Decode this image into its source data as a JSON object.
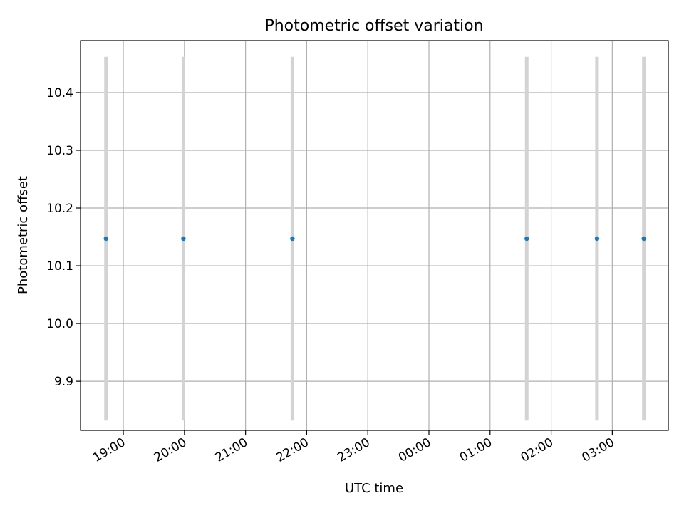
{
  "chart_data": {
    "type": "scatter",
    "title": "Photometric offset variation",
    "xlabel": "UTC time",
    "ylabel": "Photometric offset",
    "grid": true,
    "x_tick_labels": [
      "19:00",
      "20:00",
      "21:00",
      "22:00",
      "23:00",
      "00:00",
      "01:00",
      "02:00",
      "03:00"
    ],
    "y_tick_labels": [
      "9.9",
      "10.0",
      "10.1",
      "10.2",
      "10.3",
      "10.4"
    ],
    "ylim": [
      9.815,
      10.49
    ],
    "xlim": [
      "18:18",
      "03:55"
    ],
    "series": [
      {
        "x": [
          "18:43",
          "19:59",
          "21:46",
          "01:36",
          "02:45",
          "03:31"
        ],
        "y": [
          10.147,
          10.147,
          10.147,
          10.147,
          10.147,
          10.147
        ],
        "yerr": [
          0.315,
          0.315,
          0.315,
          0.315,
          0.315,
          0.315
        ]
      }
    ],
    "colors": {
      "marker": "#1f77b4",
      "errorbar": "#d3d3d3",
      "grid": "#b0b0b0"
    }
  }
}
